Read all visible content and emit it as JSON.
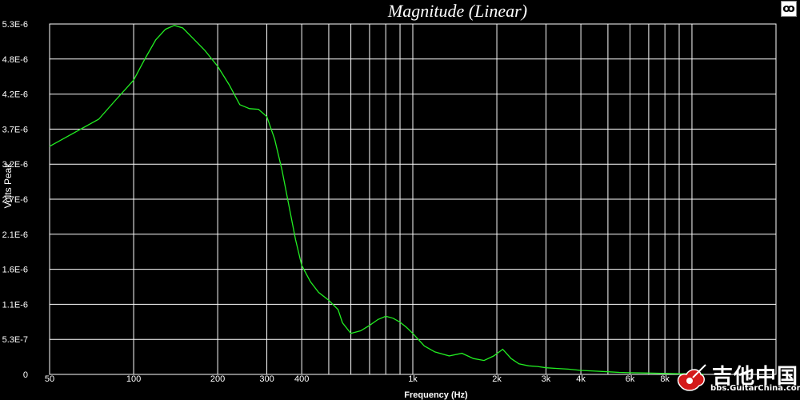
{
  "chart_data": {
    "type": "line",
    "title": "Magnitude (Linear)",
    "xlabel": "Frequency (Hz)",
    "ylabel": "Volts Peak",
    "xscale": "log",
    "xlim": [
      50,
      20000
    ],
    "ylim": [
      0,
      5.3e-06
    ],
    "grid": true,
    "line_color": "#22ee22",
    "x_ticks": [
      {
        "value": 50,
        "label": "50"
      },
      {
        "value": 100,
        "label": "100"
      },
      {
        "value": 200,
        "label": "200"
      },
      {
        "value": 300,
        "label": "300"
      },
      {
        "value": 400,
        "label": "400"
      },
      {
        "value": 500,
        "label": ""
      },
      {
        "value": 600,
        "label": ""
      },
      {
        "value": 700,
        "label": ""
      },
      {
        "value": 800,
        "label": ""
      },
      {
        "value": 900,
        "label": ""
      },
      {
        "value": 1000,
        "label": "1k"
      },
      {
        "value": 2000,
        "label": "2k"
      },
      {
        "value": 3000,
        "label": "3k"
      },
      {
        "value": 4000,
        "label": "4k"
      },
      {
        "value": 5000,
        "label": ""
      },
      {
        "value": 6000,
        "label": "6k"
      },
      {
        "value": 7000,
        "label": ""
      },
      {
        "value": 8000,
        "label": "8k"
      },
      {
        "value": 9000,
        "label": ""
      },
      {
        "value": 10000,
        "label": "10k"
      }
    ],
    "y_ticks": [
      {
        "value": 0,
        "label": "0"
      },
      {
        "value": 5.3e-07,
        "label": "5.3E-7"
      },
      {
        "value": 1.06e-06,
        "label": "1.1E-6"
      },
      {
        "value": 1.59e-06,
        "label": "1.6E-6"
      },
      {
        "value": 2.12e-06,
        "label": "2.1E-6"
      },
      {
        "value": 2.65e-06,
        "label": "2.7E-6"
      },
      {
        "value": 3.18e-06,
        "label": "3.2E-6"
      },
      {
        "value": 3.71e-06,
        "label": "3.7E-6"
      },
      {
        "value": 4.24e-06,
        "label": "4.2E-6"
      },
      {
        "value": 4.77e-06,
        "label": "4.8E-6"
      },
      {
        "value": 5.3e-06,
        "label": "5.3E-6"
      }
    ],
    "series": [
      {
        "x": [
          50,
          75,
          85,
          100,
          110,
          120,
          130,
          140,
          150,
          160,
          180,
          200,
          220,
          240,
          260,
          280,
          300,
          320,
          340,
          360,
          380,
          400,
          430,
          460,
          500,
          540,
          560,
          600,
          650,
          700,
          750,
          800,
          850,
          900,
          950,
          1000,
          1100,
          1200,
          1350,
          1500,
          1650,
          1800,
          1950,
          2100,
          2250,
          2400,
          2600,
          2800,
          3000,
          3300,
          3600,
          4000,
          4500,
          5000,
          5500,
          6000,
          7000,
          8000,
          9000,
          10000,
          11000
        ],
        "y": [
          3.45e-06,
          3.86e-06,
          4.12e-06,
          4.45e-06,
          4.78e-06,
          5.06e-06,
          5.22e-06,
          5.28e-06,
          5.24e-06,
          5.12e-06,
          4.9e-06,
          4.66e-06,
          4.38e-06,
          4.08e-06,
          4.02e-06,
          4.01e-06,
          3.9e-06,
          3.56e-06,
          3.09e-06,
          2.55e-06,
          2.04e-06,
          1.65e-06,
          1.4e-06,
          1.24e-06,
          1.12e-06,
          9.8e-07,
          7.8e-07,
          6.2e-07,
          6.6e-07,
          7.4e-07,
          8.3e-07,
          8.8e-07,
          8.5e-07,
          7.9e-07,
          7.1e-07,
          6.2e-07,
          4.3e-07,
          3.4e-07,
          2.8e-07,
          3.2e-07,
          2.4e-07,
          2.1e-07,
          2.8e-07,
          3.8e-07,
          2.4e-07,
          1.6e-07,
          1.3e-07,
          1.2e-07,
          1e-07,
          9e-08,
          8e-08,
          6e-08,
          5e-08,
          4e-08,
          3e-08,
          2.5e-08,
          2e-08,
          1.5e-08,
          1e-08,
          1e-08,
          5e-09
        ]
      }
    ]
  },
  "watermark": {
    "name": "吉他中国",
    "url": "bbs.GuitarChina.com"
  },
  "corner_icon": "corner-logo-icon"
}
